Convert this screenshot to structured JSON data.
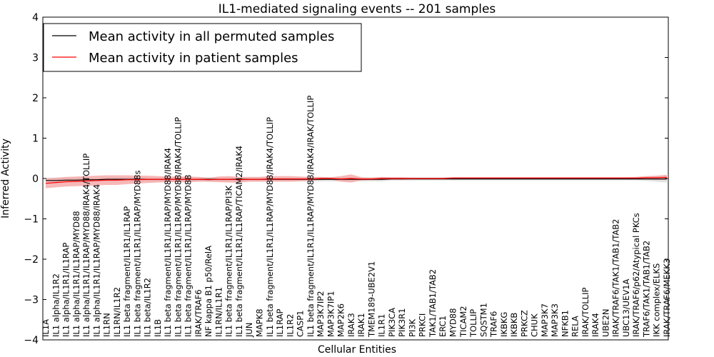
{
  "chart_data": {
    "type": "line",
    "title": "IL1-mediated signaling events -- 201 samples",
    "xlabel": "Cellular Entities",
    "ylabel": "Inferred Activity",
    "ylim": [
      -4,
      4
    ],
    "yticks": [
      "−4",
      "−3",
      "−2",
      "−1",
      "0",
      "1",
      "2",
      "3",
      "4"
    ],
    "grid": false,
    "legend_position": "top-left",
    "categories": [
      "IL1A",
      "IL1 alpha/IL1R2",
      "IL1 alpha/IL1R1/IL1RAP",
      "IL1 alpha/IL1R1/IL1RAP/MYD88",
      "IL1 alpha/IL1R1/IL1RAP/MYD88/IRAK4/TOLLIP",
      "IL1 alpha/IL1R1/IL1RAP/MYD88/IRAK4",
      "IL1RN",
      "IL1RN/IL1R2",
      "IL1 beta fragment/IL1R1/IL1RAP",
      "IL1 beta fragment/IL1R1/IL1RAP/MYD88s",
      "IL1 beta/IL1R2",
      "IL1B",
      "IL1 beta fragment/IL1R1/IL1RAP/MYD88/IRAK4",
      "IL1 beta fragment/IL1R1/IL1RAP/MYD88/IRAK4/TOLLIP",
      "IL1 beta fragment/IL1R1/IL1RAP/MYD88",
      "IRAK/TRAF6",
      "NF kappa B1 p50/RelA",
      "IL1RN/IL1R1",
      "IL1 beta fragment/IL1R1/IL1RAP/PI3K",
      "IL1 beta fragment/IL1R1/IL1RAP/TICAM2/IRAK4",
      "JUN",
      "MAPK8",
      "IL1 beta fragment/IL1R1/IL1RAP/MYD88/IRAK4/TOLLIP",
      "IL1RAP",
      "IL1R2",
      "CASP1",
      "IL1 beta fragment/IL1R1/IL1RAP/MYD88/IRAK4/IRAK/TOLLIP",
      "MAP3K7IP2",
      "MAP3K7IP1",
      "MAP2K6",
      "IRAK3",
      "IRAK1",
      "TMEM189-UBE2V1",
      "IL1R1",
      "PIK3CA",
      "PIK3R1",
      "PI3K",
      "PRKCI",
      "TAK1/TAB1/TAB2",
      "ERC1",
      "MYD88",
      "TICAM2",
      "TOLLIP",
      "SQSTM1",
      "TRAF6",
      "IKBKG",
      "IKBKB",
      "PRKCZ",
      "CHUK",
      "MAP3K7",
      "MAP3K3",
      "NFKB1",
      "RELA",
      "IRAK/TOLLIP",
      "IRAK4",
      "UBE2N",
      "IRAK/TRAF6/TAK1/TAB1/TAB2",
      "UBC13/UEV1A",
      "IRAK/TRAF6/p62/Atypical PKCs",
      "TRAF6/TAK1/TAB1/TAB2",
      "IKK complex/ELKS",
      "IRAK/TRAF6/MEKK3"
    ],
    "series": [
      {
        "name": "Mean activity in all permuted samples",
        "color": "#000000",
        "band_color": "#c8c8c8",
        "values": [
          -0.05,
          -0.05,
          -0.04,
          -0.04,
          -0.03,
          -0.03,
          -0.02,
          -0.02,
          -0.02,
          -0.02,
          -0.02,
          -0.02,
          -0.02,
          -0.02,
          -0.02,
          -0.02,
          -0.02,
          -0.02,
          -0.02,
          -0.02,
          -0.02,
          -0.02,
          -0.02,
          -0.02,
          -0.02,
          -0.02,
          -0.02,
          -0.02,
          -0.02,
          -0.02,
          -0.02,
          -0.02,
          -0.02,
          -0.02,
          -0.01,
          -0.01,
          -0.01,
          -0.01,
          -0.01,
          -0.01,
          -0.01,
          -0.01,
          -0.01,
          -0.01,
          -0.01,
          -0.01,
          -0.01,
          -0.01,
          -0.01,
          -0.01,
          -0.01,
          -0.01,
          -0.01,
          -0.01,
          -0.01,
          -0.01,
          -0.01,
          -0.01,
          -0.01,
          -0.01,
          -0.01,
          -0.01
        ],
        "band": [
          0.07,
          0.07,
          0.06,
          0.06,
          0.06,
          0.05,
          0.05,
          0.05,
          0.05,
          0.05,
          0.05,
          0.05,
          0.05,
          0.05,
          0.05,
          0.05,
          0.05,
          0.05,
          0.05,
          0.05,
          0.05,
          0.05,
          0.05,
          0.05,
          0.05,
          0.05,
          0.05,
          0.05,
          0.05,
          0.05,
          0.05,
          0.05,
          0.05,
          0.05,
          0.04,
          0.04,
          0.04,
          0.04,
          0.04,
          0.04,
          0.04,
          0.04,
          0.04,
          0.04,
          0.04,
          0.04,
          0.04,
          0.04,
          0.04,
          0.04,
          0.04,
          0.04,
          0.04,
          0.04,
          0.04,
          0.04,
          0.04,
          0.04,
          0.04,
          0.05,
          0.07,
          0.09
        ]
      },
      {
        "name": "Mean activity in patient samples",
        "color": "#ff0000",
        "band_color": "#f4a0a0",
        "values": [
          -0.12,
          -0.1,
          -0.08,
          -0.07,
          -0.06,
          -0.05,
          -0.04,
          -0.04,
          -0.03,
          -0.03,
          -0.02,
          -0.02,
          -0.02,
          -0.02,
          -0.02,
          -0.02,
          -0.03,
          -0.02,
          -0.02,
          -0.03,
          -0.02,
          -0.02,
          -0.01,
          -0.01,
          -0.01,
          -0.01,
          -0.01,
          0,
          0,
          -0.01,
          0,
          -0.01,
          -0.01,
          0,
          0,
          0,
          0,
          0,
          0,
          0,
          0.01,
          0.01,
          0.01,
          0.01,
          0.01,
          0.01,
          0.01,
          0.01,
          0.01,
          0.01,
          0.01,
          0.01,
          0.01,
          0.01,
          0.01,
          0.01,
          0.01,
          0.01,
          0.01,
          0.02,
          0.02,
          0.03
        ],
        "band": [
          0.12,
          0.12,
          0.12,
          0.12,
          0.12,
          0.12,
          0.12,
          0.12,
          0.11,
          0.1,
          0.09,
          0.08,
          0.07,
          0.07,
          0.07,
          0.06,
          0.05,
          0.07,
          0.08,
          0.07,
          0.06,
          0.06,
          0.07,
          0.07,
          0.07,
          0.06,
          0.05,
          0.04,
          0.03,
          0.07,
          0.1,
          0.04,
          0.03,
          0.04,
          0.03,
          0.03,
          0.02,
          0.02,
          0.02,
          0.02,
          0.02,
          0.02,
          0.02,
          0.02,
          0.02,
          0.02,
          0.02,
          0.02,
          0.02,
          0.02,
          0.02,
          0.02,
          0.02,
          0.02,
          0.02,
          0.02,
          0.02,
          0.02,
          0.03,
          0.04,
          0.05,
          0.06
        ]
      }
    ]
  }
}
